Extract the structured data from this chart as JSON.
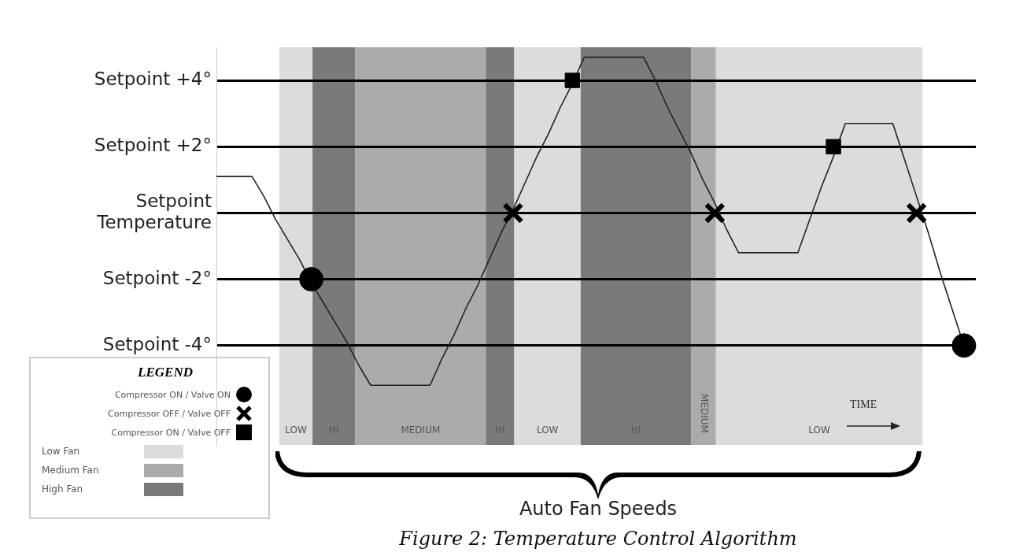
{
  "chart_data": {
    "type": "line",
    "title": "Figure 2: Temperature Control Algorithm",
    "xlabel": "Auto Fan Speeds",
    "legend_title": "LEGEND",
    "categories": [
      null,
      null,
      null,
      null,
      null,
      null,
      null,
      null,
      null,
      null,
      null,
      null,
      null,
      null,
      null,
      null,
      null,
      null,
      null,
      null,
      null,
      null,
      null,
      null,
      null,
      null,
      null,
      null,
      null,
      null,
      null,
      null,
      null,
      null,
      null,
      null,
      null,
      null,
      null,
      null,
      null,
      null,
      null,
      null,
      null,
      null,
      null,
      null,
      null,
      null,
      null,
      null,
      null,
      null,
      null,
      null,
      null,
      null,
      null,
      null,
      null,
      null,
      null,
      null,
      null
    ],
    "series": [
      {
        "color": "#222222",
        "marker": "none",
        "values": [
          1.1,
          1.1,
          1.1,
          1.1,
          0.5,
          -0.2,
          -0.8,
          -1.4,
          -2.1,
          -2.7,
          -3.3,
          -3.9,
          -4.6,
          -5.2,
          -5.2,
          -5.2,
          -5.2,
          -5.2,
          -5.2,
          -4.4,
          -3.7,
          -2.9,
          -2.2,
          -1.4,
          -0.6,
          0.1,
          0.9,
          1.7,
          2.4,
          3.2,
          3.9,
          4.7,
          4.7,
          4.7,
          4.7,
          4.7,
          4.7,
          4.0,
          3.2,
          2.5,
          1.8,
          1.0,
          0.3,
          -0.5,
          -1.2,
          -1.2,
          -1.2,
          -1.2,
          -1.2,
          -1.2,
          -0.2,
          0.8,
          1.7,
          2.7,
          2.7,
          2.7,
          2.7,
          2.7,
          1.6,
          0.5,
          -0.6,
          -1.8,
          -2.9,
          -4.0,
          null
        ]
      },
      {
        "type": "scatter",
        "name": "Compressor ON / Valve ON",
        "color": "#000000",
        "marker": "circle",
        "values": [
          null,
          null,
          null,
          null,
          null,
          null,
          null,
          null,
          -2,
          null,
          null,
          null,
          null,
          null,
          null,
          null,
          null,
          null,
          null,
          null,
          null,
          null,
          null,
          null,
          null,
          null,
          null,
          null,
          null,
          null,
          null,
          null,
          null,
          null,
          null,
          null,
          null,
          null,
          null,
          null,
          null,
          null,
          null,
          null,
          null,
          null,
          null,
          null,
          null,
          null,
          null,
          null,
          null,
          null,
          null,
          null,
          null,
          null,
          null,
          null,
          null,
          null,
          null,
          -4,
          null
        ]
      },
      {
        "type": "scatter",
        "name": "Compressor OFF / Valve OFF",
        "color": "#000000",
        "marker": "cross",
        "values": [
          null,
          null,
          null,
          null,
          null,
          null,
          null,
          null,
          null,
          null,
          null,
          null,
          null,
          null,
          null,
          null,
          null,
          null,
          null,
          null,
          null,
          null,
          null,
          null,
          null,
          0,
          null,
          null,
          null,
          null,
          null,
          null,
          null,
          null,
          null,
          null,
          null,
          null,
          null,
          null,
          null,
          null,
          0,
          null,
          null,
          null,
          null,
          null,
          null,
          null,
          null,
          null,
          null,
          null,
          null,
          null,
          null,
          null,
          null,
          0,
          null,
          null,
          null,
          null,
          null
        ]
      },
      {
        "type": "scatter",
        "name": "Compressor ON / Valve OFF",
        "color": "#000000",
        "marker": "square",
        "values": [
          null,
          null,
          null,
          null,
          null,
          null,
          null,
          null,
          null,
          null,
          null,
          null,
          null,
          null,
          null,
          null,
          null,
          null,
          null,
          null,
          null,
          null,
          null,
          null,
          null,
          null,
          null,
          null,
          null,
          null,
          4,
          null,
          null,
          null,
          null,
          null,
          null,
          null,
          null,
          null,
          null,
          null,
          null,
          null,
          null,
          null,
          null,
          null,
          null,
          null,
          null,
          null,
          2,
          null,
          null,
          null,
          null,
          null,
          null,
          null,
          null,
          null,
          null,
          null,
          null
        ]
      }
    ],
    "ylim": [
      -7,
      5
    ],
    "yticks": [
      {
        "value": 4,
        "label": "Setpoint +4°"
      },
      {
        "value": 2,
        "label": "Setpoint +2°"
      },
      {
        "value": 0,
        "label": "Setpoint Temperature"
      },
      {
        "value": -2,
        "label": "Setpoint -2°"
      },
      {
        "value": -4,
        "label": "Setpoint -4°"
      }
    ],
    "grid": "y",
    "tick_labels": "y",
    "legend": "bottom left",
    "annotations": [
      "TIME",
      "Low Fan",
      "Medium Fan",
      "High Fan",
      "LOW",
      "HI",
      "MEDIUM",
      "HI",
      "LOW",
      "HI",
      "MEDIUM",
      "LOW"
    ]
  }
}
